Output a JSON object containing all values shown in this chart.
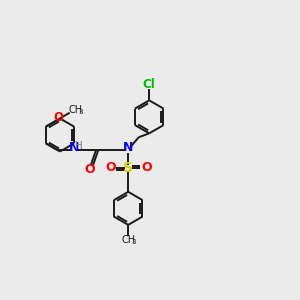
{
  "bg_color": "#ebebeb",
  "bond_color": "#1a1a1a",
  "blue": "#0000ff",
  "red": "#ff0000",
  "green": "#00bb00",
  "gray_blue": "#708090",
  "yellow": "#cccc00",
  "lw": 1.4,
  "ring_r": 0.55,
  "xlim": [
    0,
    10
  ],
  "ylim": [
    0,
    10
  ]
}
